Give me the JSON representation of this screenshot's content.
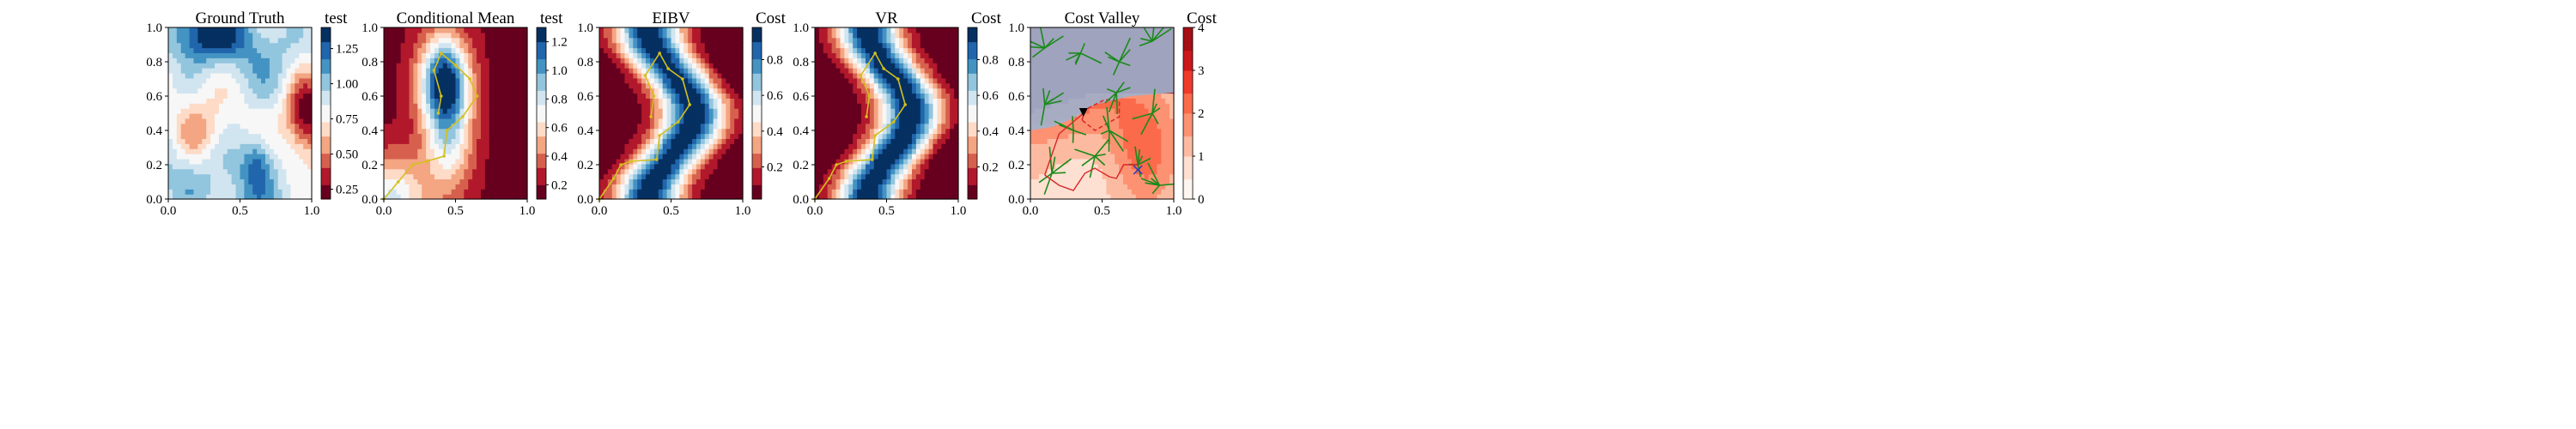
{
  "figure": {
    "panels": [
      {
        "title": "Ground Truth",
        "cbar_label": "test"
      },
      {
        "title": "Conditional Mean",
        "cbar_label": "test"
      },
      {
        "title": "EIBV",
        "cbar_label": "Cost"
      },
      {
        "title": "VR",
        "cbar_label": "Cost"
      },
      {
        "title": "Cost Valley",
        "cbar_label": "Cost"
      }
    ]
  },
  "chart_data": [
    {
      "type": "heatmap",
      "title": "Ground Truth",
      "colorbar_label": "test",
      "colormap": "RdBu",
      "colorbar_ticks": [
        "0.25",
        "0.50",
        "0.75",
        "1.00",
        "1.25"
      ],
      "colorbar_range": [
        0.18,
        1.4
      ],
      "xlim": [
        0,
        1
      ],
      "ylim": [
        0,
        1
      ],
      "x_ticks": [
        "0.0",
        "0.5",
        "1.0"
      ],
      "y_ticks": [
        "0.0",
        "0.2",
        "0.4",
        "0.6",
        "0.8",
        "1.0"
      ],
      "features": [
        {
          "x": 0.95,
          "y": 0.52,
          "value": 0.2
        },
        {
          "x": 0.25,
          "y": 0.4,
          "value": 0.8
        },
        {
          "x": 0.3,
          "y": 0.9,
          "value": 1.35
        },
        {
          "x": 0.65,
          "y": 0.22,
          "value": 1.3
        }
      ]
    },
    {
      "type": "heatmap",
      "title": "Conditional Mean",
      "colorbar_label": "test",
      "colormap": "RdBu",
      "colorbar_ticks": [
        "0.2",
        "0.4",
        "0.6",
        "0.8",
        "1.0",
        "1.2"
      ],
      "colorbar_range": [
        0.1,
        1.3
      ],
      "xlim": [
        0,
        1
      ],
      "ylim": [
        0,
        1
      ],
      "x_ticks": [
        "0.0",
        "0.5",
        "1.0"
      ],
      "y_ticks": [
        "0.0",
        "0.2",
        "0.4",
        "0.6",
        "0.8",
        "1.0"
      ],
      "path": [
        [
          0.0,
          0.0
        ],
        [
          0.1,
          0.1
        ],
        [
          0.2,
          0.2
        ],
        [
          0.3,
          0.22
        ],
        [
          0.42,
          0.25
        ],
        [
          0.44,
          0.4
        ],
        [
          0.55,
          0.48
        ],
        [
          0.65,
          0.6
        ],
        [
          0.6,
          0.7
        ],
        [
          0.5,
          0.78
        ],
        [
          0.4,
          0.85
        ],
        [
          0.35,
          0.75
        ],
        [
          0.4,
          0.6
        ],
        [
          0.38,
          0.5
        ]
      ]
    },
    {
      "type": "heatmap",
      "title": "EIBV",
      "colorbar_label": "Cost",
      "colormap": "RdBu",
      "colorbar_ticks": [
        "0.2",
        "0.4",
        "0.6",
        "0.8"
      ],
      "colorbar_range": [
        0.02,
        0.98
      ],
      "xlim": [
        0,
        1
      ],
      "ylim": [
        0,
        1
      ],
      "x_ticks": [
        "0.0",
        "0.5",
        "1.0"
      ],
      "y_ticks": [
        "0.0",
        "0.2",
        "0.4",
        "0.6",
        "0.8",
        "1.0"
      ],
      "path": [
        [
          0.0,
          0.0
        ],
        [
          0.1,
          0.12
        ],
        [
          0.15,
          0.2
        ],
        [
          0.22,
          0.22
        ],
        [
          0.4,
          0.23
        ],
        [
          0.42,
          0.37
        ],
        [
          0.55,
          0.45
        ],
        [
          0.63,
          0.55
        ],
        [
          0.58,
          0.7
        ],
        [
          0.48,
          0.76
        ],
        [
          0.42,
          0.85
        ],
        [
          0.32,
          0.72
        ],
        [
          0.38,
          0.6
        ],
        [
          0.36,
          0.48
        ]
      ]
    },
    {
      "type": "heatmap",
      "title": "VR",
      "colorbar_label": "Cost",
      "colormap": "RdBu",
      "colorbar_ticks": [
        "0.2",
        "0.4",
        "0.6",
        "0.8"
      ],
      "colorbar_range": [
        0.02,
        0.98
      ],
      "xlim": [
        0,
        1
      ],
      "ylim": [
        0,
        1
      ],
      "x_ticks": [
        "0.0",
        "0.5",
        "1.0"
      ],
      "y_ticks": [
        "0.0",
        "0.2",
        "0.4",
        "0.6",
        "0.8",
        "1.0"
      ],
      "path": [
        [
          0.0,
          0.0
        ],
        [
          0.1,
          0.12
        ],
        [
          0.15,
          0.2
        ],
        [
          0.22,
          0.22
        ],
        [
          0.4,
          0.23
        ],
        [
          0.42,
          0.37
        ],
        [
          0.55,
          0.45
        ],
        [
          0.63,
          0.55
        ],
        [
          0.58,
          0.7
        ],
        [
          0.48,
          0.76
        ],
        [
          0.42,
          0.85
        ],
        [
          0.32,
          0.72
        ],
        [
          0.38,
          0.6
        ],
        [
          0.36,
          0.48
        ]
      ]
    },
    {
      "type": "heatmap",
      "title": "Cost Valley",
      "colorbar_label": "Cost",
      "colormap": "Reds",
      "colorbar_ticks": [
        "0",
        "1",
        "2",
        "3",
        "4"
      ],
      "colorbar_range": [
        0,
        4
      ],
      "xlim": [
        0,
        1
      ],
      "ylim": [
        0,
        1
      ],
      "x_ticks": [
        "0.0",
        "0.5",
        "1.0"
      ],
      "y_ticks": [
        "0.0",
        "0.2",
        "0.4",
        "0.6",
        "0.8",
        "1.0"
      ],
      "selected_path": [
        [
          0.1,
          0.14
        ],
        [
          0.2,
          0.08
        ],
        [
          0.3,
          0.05
        ],
        [
          0.38,
          0.15
        ],
        [
          0.45,
          0.18
        ],
        [
          0.55,
          0.13
        ],
        [
          0.6,
          0.12
        ],
        [
          0.65,
          0.2
        ],
        [
          0.75,
          0.2
        ]
      ],
      "start": [
        0.37,
        0.5
      ],
      "target": [
        0.75,
        0.17
      ]
    }
  ]
}
